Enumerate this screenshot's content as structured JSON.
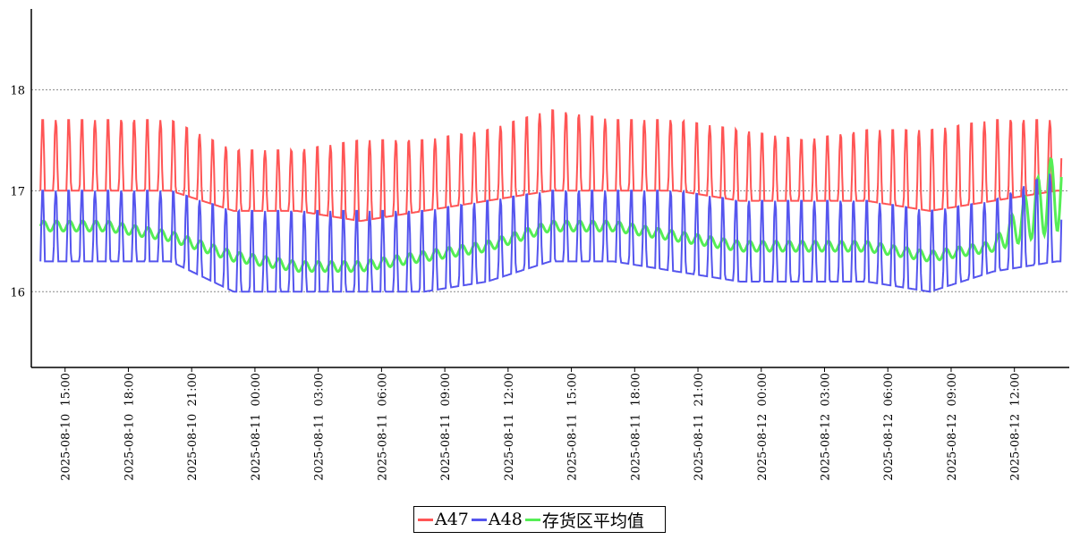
{
  "chart_data": {
    "type": "line",
    "title": "",
    "xlabel": "",
    "ylabel": "",
    "x_range": [
      "2025-08-10 13:24",
      "2025-08-12 14:36"
    ],
    "ylim": [
      15.25,
      18.8
    ],
    "grid": "horizontal-dashed",
    "legend_position": "bottom-center",
    "y_ticks": [
      16,
      17,
      18
    ],
    "x_ticks": [
      "2025-08-10 15:00",
      "2025-08-10 18:00",
      "2025-08-10 21:00",
      "2025-08-11 00:00",
      "2025-08-11 03:00",
      "2025-08-11 06:00",
      "2025-08-11 09:00",
      "2025-08-11 12:00",
      "2025-08-11 15:00",
      "2025-08-11 18:00",
      "2025-08-11 21:00",
      "2025-08-12 00:00",
      "2025-08-12 03:00",
      "2025-08-12 06:00",
      "2025-08-12 09:00",
      "2025-08-12 12:00"
    ],
    "series": [
      {
        "name": "A47",
        "color": "#ff5555",
        "x": [
          "2025-08-10 14:00",
          "2025-08-10 17:00",
          "2025-08-10 20:00",
          "2025-08-10 23:00",
          "2025-08-11 02:00",
          "2025-08-11 05:00",
          "2025-08-11 08:00",
          "2025-08-11 11:00",
          "2025-08-11 14:00",
          "2025-08-11 17:00",
          "2025-08-11 20:00",
          "2025-08-11 23:00",
          "2025-08-12 02:00",
          "2025-08-12 05:00",
          "2025-08-12 08:00",
          "2025-08-12 11:00",
          "2025-08-12 14:00"
        ],
        "low": [
          17.0,
          17.0,
          17.0,
          16.8,
          16.8,
          16.7,
          16.8,
          16.9,
          17.0,
          17.0,
          17.0,
          16.9,
          16.9,
          16.9,
          16.8,
          16.9,
          17.0
        ],
        "high": [
          17.7,
          17.7,
          17.7,
          17.4,
          17.4,
          17.5,
          17.5,
          17.6,
          17.8,
          17.7,
          17.7,
          17.6,
          17.5,
          17.6,
          17.6,
          17.7,
          17.7
        ]
      },
      {
        "name": "A48",
        "color": "#5555ee",
        "x": [
          "2025-08-10 14:00",
          "2025-08-10 17:00",
          "2025-08-10 20:00",
          "2025-08-10 23:00",
          "2025-08-11 02:00",
          "2025-08-11 05:00",
          "2025-08-11 08:00",
          "2025-08-11 11:00",
          "2025-08-11 14:00",
          "2025-08-11 17:00",
          "2025-08-11 20:00",
          "2025-08-11 23:00",
          "2025-08-12 02:00",
          "2025-08-12 05:00",
          "2025-08-12 08:00",
          "2025-08-12 11:00",
          "2025-08-12 14:00"
        ],
        "low": [
          16.3,
          16.3,
          16.3,
          16.0,
          16.0,
          16.0,
          16.0,
          16.1,
          16.3,
          16.3,
          16.2,
          16.1,
          16.1,
          16.1,
          16.0,
          16.2,
          16.3
        ],
        "high": [
          17.0,
          17.0,
          17.0,
          16.8,
          16.8,
          16.8,
          16.8,
          16.9,
          17.0,
          17.0,
          17.0,
          16.9,
          16.9,
          16.9,
          16.8,
          16.9,
          17.2
        ]
      },
      {
        "name": "存货区平均值",
        "color": "#55ee55",
        "x": [
          "2025-08-10 14:00",
          "2025-08-10 17:00",
          "2025-08-10 20:00",
          "2025-08-10 23:00",
          "2025-08-11 02:00",
          "2025-08-11 05:00",
          "2025-08-11 08:00",
          "2025-08-11 11:00",
          "2025-08-11 14:00",
          "2025-08-11 17:00",
          "2025-08-11 20:00",
          "2025-08-11 23:00",
          "2025-08-12 02:00",
          "2025-08-12 05:00",
          "2025-08-12 08:00",
          "2025-08-12 11:00",
          "2025-08-12 14:00"
        ],
        "low": [
          16.6,
          16.6,
          16.5,
          16.3,
          16.2,
          16.2,
          16.3,
          16.4,
          16.6,
          16.6,
          16.5,
          16.4,
          16.4,
          16.4,
          16.3,
          16.4,
          16.6
        ],
        "high": [
          16.7,
          16.7,
          16.6,
          16.4,
          16.3,
          16.3,
          16.4,
          16.5,
          16.7,
          16.7,
          16.6,
          16.5,
          16.5,
          16.5,
          16.4,
          16.5,
          17.4
        ]
      }
    ]
  }
}
